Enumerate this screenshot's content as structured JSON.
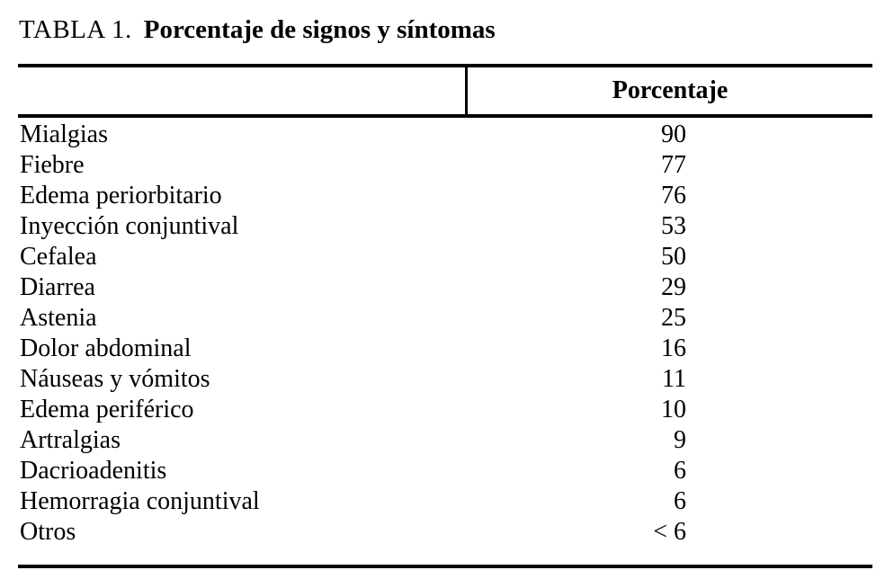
{
  "page": {
    "background_color": "#ffffff",
    "text_color": "#000000",
    "rule_color": "#000000"
  },
  "title": {
    "label": "TABLA 1.",
    "text": "Porcentaje de signos y síntomas"
  },
  "table": {
    "header": {
      "symptom": "",
      "percentage": "Porcentaje"
    },
    "rows": [
      {
        "name": "Mialgias",
        "value": "90"
      },
      {
        "name": "Fiebre",
        "value": "77"
      },
      {
        "name": "Edema periorbitario",
        "value": "76"
      },
      {
        "name": "Inyección conjuntival",
        "value": "53"
      },
      {
        "name": "Cefalea",
        "value": "50"
      },
      {
        "name": "Diarrea",
        "value": "29"
      },
      {
        "name": "Astenia",
        "value": "25"
      },
      {
        "name": "Dolor abdominal",
        "value": "16"
      },
      {
        "name": "Náuseas y vómitos",
        "value": "11"
      },
      {
        "name": "Edema periférico",
        "value": "10"
      },
      {
        "name": "Artralgias",
        "value": "9"
      },
      {
        "name": "Dacrioadenitis",
        "value": "6"
      },
      {
        "name": "Hemorragia conjuntival",
        "value": "6"
      },
      {
        "name": "Otros",
        "value": "< 6"
      }
    ]
  }
}
